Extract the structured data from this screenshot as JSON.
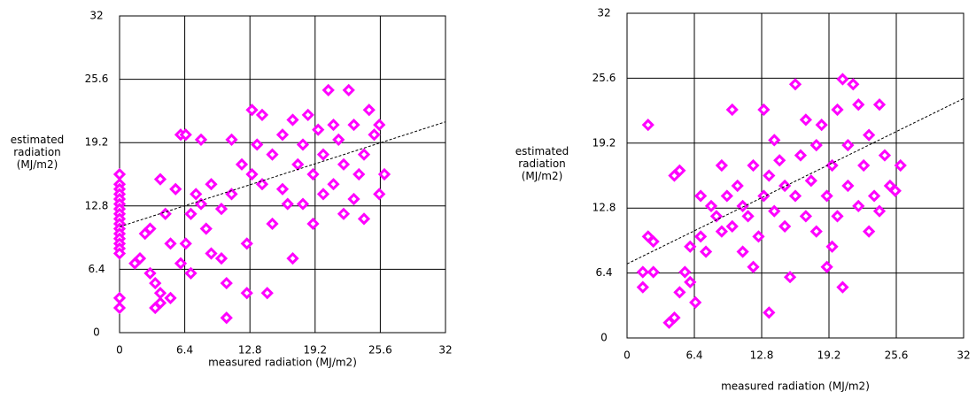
{
  "chart_data": [
    {
      "type": "scatter",
      "xlabel": "measured radiation (MJ/m2)",
      "ylabel": "estimated radiation (MJ/m2)",
      "xlim": [
        0,
        32
      ],
      "ylim": [
        0,
        32
      ],
      "xticks": [
        0,
        6.4,
        12.8,
        19.2,
        25.6,
        32
      ],
      "yticks": [
        0,
        6.4,
        12.8,
        19.2,
        25.6,
        32
      ],
      "grid": true,
      "color": "#ff00ff",
      "x": [
        0,
        0,
        0,
        0,
        0,
        0,
        0,
        0,
        0,
        0,
        0,
        0,
        0,
        0,
        0,
        0,
        0,
        0,
        1.5,
        2,
        2.5,
        3,
        3,
        3.5,
        3.5,
        4,
        4,
        4,
        4.5,
        5,
        5,
        5.5,
        6,
        6,
        6.5,
        6.5,
        7,
        7,
        7.5,
        8,
        8,
        8.5,
        9,
        9,
        10,
        10,
        10.5,
        10.5,
        11,
        11,
        12,
        12.5,
        12.5,
        13,
        13,
        13.5,
        14,
        14,
        14.5,
        15,
        15,
        16,
        16,
        16.5,
        17,
        17,
        17.5,
        18,
        18,
        18.5,
        19,
        19,
        19.5,
        20,
        20,
        20.5,
        21,
        21,
        21.5,
        22,
        22,
        22.5,
        23,
        23,
        23.5,
        24,
        24,
        24.5,
        25,
        25.5,
        25.5,
        26
      ],
      "y": [
        16,
        15,
        14.5,
        14,
        13.5,
        13,
        12.5,
        12,
        11.5,
        11,
        10.5,
        10,
        9.5,
        9,
        8.5,
        8,
        3.5,
        2.5,
        7,
        7.5,
        10,
        10.5,
        6,
        5,
        2.5,
        3,
        4,
        15.5,
        12,
        9,
        3.5,
        14.5,
        7,
        20,
        9,
        20,
        12,
        6,
        14,
        19.5,
        13,
        10.5,
        15,
        8,
        12.5,
        7.5,
        5,
        1.5,
        19.5,
        14,
        17,
        9,
        4,
        22.5,
        16,
        19,
        22,
        15,
        4,
        18,
        11,
        20,
        14.5,
        13,
        21.5,
        7.5,
        17,
        19,
        13,
        22,
        16,
        11,
        20.5,
        14,
        18,
        24.5,
        21,
        15,
        19.5,
        17,
        12,
        24.5,
        21,
        13.5,
        16,
        18,
        11.5,
        22.5,
        20,
        14,
        21,
        16
      ],
      "trendline": {
        "x": [
          0,
          32
        ],
        "y": [
          10.7,
          21.3
        ]
      }
    },
    {
      "type": "scatter",
      "xlabel": "measured radiation (MJ/m2)",
      "ylabel": "estimated radiation (MJ/m2)",
      "xlim": [
        0,
        32
      ],
      "ylim": [
        0,
        32
      ],
      "xticks": [
        0,
        6.4,
        12.8,
        19.2,
        25.6,
        32
      ],
      "yticks": [
        0,
        6.4,
        12.8,
        19.2,
        25.6,
        32
      ],
      "grid": true,
      "color": "#ff00ff",
      "x": [
        1.5,
        1.5,
        2,
        2,
        2.5,
        2.5,
        4,
        4.5,
        4.5,
        5,
        5,
        5.5,
        6,
        6,
        6.5,
        7,
        7,
        7.5,
        8,
        8.5,
        9,
        9,
        9.5,
        10,
        10,
        10.5,
        11,
        11,
        11.5,
        12,
        12,
        12.5,
        13,
        13,
        13.5,
        13.5,
        14,
        14,
        14.5,
        15,
        15,
        15.5,
        16,
        16,
        16.5,
        17,
        17,
        17.5,
        18,
        18,
        18.5,
        19,
        19,
        19.5,
        19.5,
        20,
        20,
        20.5,
        20.5,
        21,
        21,
        21.5,
        22,
        22,
        22.5,
        23,
        23,
        23.5,
        24,
        24,
        24.5,
        25,
        25.5,
        26
      ],
      "y": [
        5,
        6.5,
        21,
        10,
        9.5,
        6.5,
        1.5,
        16,
        2,
        16.5,
        4.5,
        6.5,
        5.5,
        9,
        3.5,
        14,
        10,
        8.5,
        13,
        12,
        17,
        10.5,
        14,
        11,
        22.5,
        15,
        13,
        8.5,
        12,
        17,
        7,
        10,
        22.5,
        14,
        2.5,
        16,
        19.5,
        12.5,
        17.5,
        11,
        15,
        6,
        14,
        25,
        18,
        21.5,
        12,
        15.5,
        19,
        10.5,
        21,
        14,
        7,
        9,
        17,
        22.5,
        12,
        25.5,
        5,
        19,
        15,
        25,
        13,
        23,
        17,
        10.5,
        20,
        14,
        23,
        12.5,
        18,
        15,
        14.5,
        17
      ],
      "trendline": {
        "x": [
          0,
          32
        ],
        "y": [
          7.3,
          23.6
        ]
      }
    }
  ]
}
